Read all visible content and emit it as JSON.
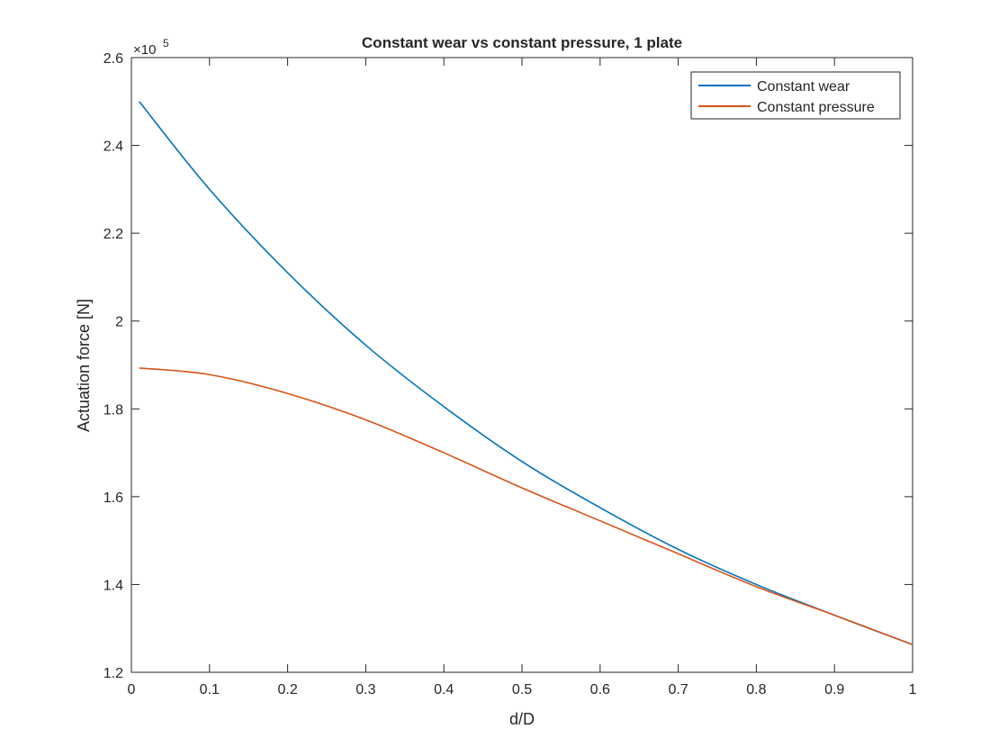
{
  "chart_data": {
    "type": "line",
    "title": "Constant wear vs constant pressure, 1 plate",
    "xlabel": "d/D",
    "ylabel": "Actuation force [N]",
    "y_exponent_label": "×10",
    "y_exponent_power": "5",
    "xlim": [
      0,
      1
    ],
    "ylim": [
      1.2,
      2.6
    ],
    "xticks": [
      0,
      0.1,
      0.2,
      0.3,
      0.4,
      0.5,
      0.6,
      0.7,
      0.8,
      0.9,
      1
    ],
    "xtick_labels": [
      "0",
      "0.1",
      "0.2",
      "0.3",
      "0.4",
      "0.5",
      "0.6",
      "0.7",
      "0.8",
      "0.9",
      "1"
    ],
    "yticks": [
      1.2,
      1.4,
      1.6,
      1.8,
      2.0,
      2.2,
      2.4,
      2.6
    ],
    "ytick_labels": [
      "1.2",
      "1.4",
      "1.6",
      "1.8",
      "2",
      "2.2",
      "2.4",
      "2.6"
    ],
    "grid": false,
    "legend_position": "top-right",
    "x": [
      0.01,
      0.1,
      0.2,
      0.3,
      0.4,
      0.5,
      0.6,
      0.7,
      0.8,
      0.9,
      1.0
    ],
    "series": [
      {
        "name": "Constant wear",
        "color": "#0072BD",
        "values": [
          2.5,
          2.3,
          2.11,
          1.945,
          1.805,
          1.68,
          1.575,
          1.48,
          1.4,
          1.33,
          1.263
        ]
      },
      {
        "name": "Constant pressure",
        "color": "#D95319",
        "values": [
          1.893,
          1.878,
          1.835,
          1.775,
          1.7,
          1.62,
          1.545,
          1.47,
          1.395,
          1.33,
          1.263
        ]
      }
    ]
  }
}
